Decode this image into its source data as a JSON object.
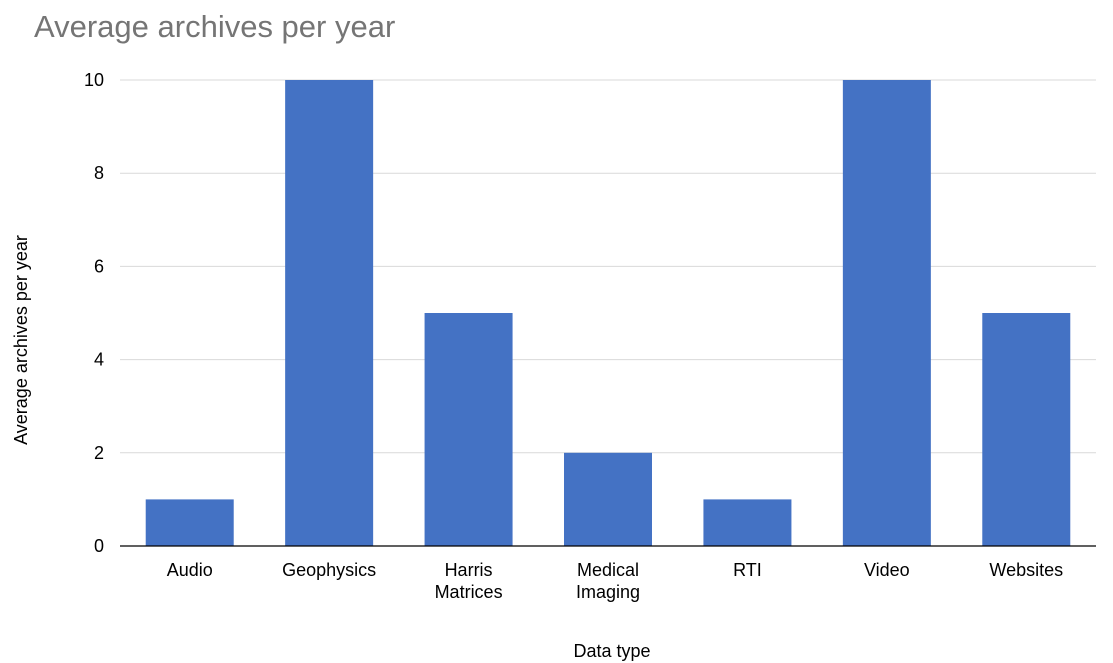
{
  "chart_data": {
    "type": "bar",
    "title": "Average archives per year",
    "xlabel": "Data type",
    "ylabel": "Average archives per year",
    "categories": [
      [
        "Audio"
      ],
      [
        "Geophysics"
      ],
      [
        "Harris",
        "Matrices"
      ],
      [
        "Medical",
        "Imaging"
      ],
      [
        "RTI"
      ],
      [
        "Video"
      ],
      [
        "Websites"
      ]
    ],
    "values": [
      1,
      10,
      5,
      2,
      1,
      10,
      5
    ],
    "ylim": [
      0,
      10
    ],
    "yticks": [
      "0",
      "2",
      "4",
      "6",
      "8",
      "10"
    ],
    "grid": true,
    "legend": "none"
  },
  "colors": {
    "bar": "#4472C4",
    "grid": "#d9d9d9",
    "axis": "#000000",
    "title": "#757575"
  }
}
